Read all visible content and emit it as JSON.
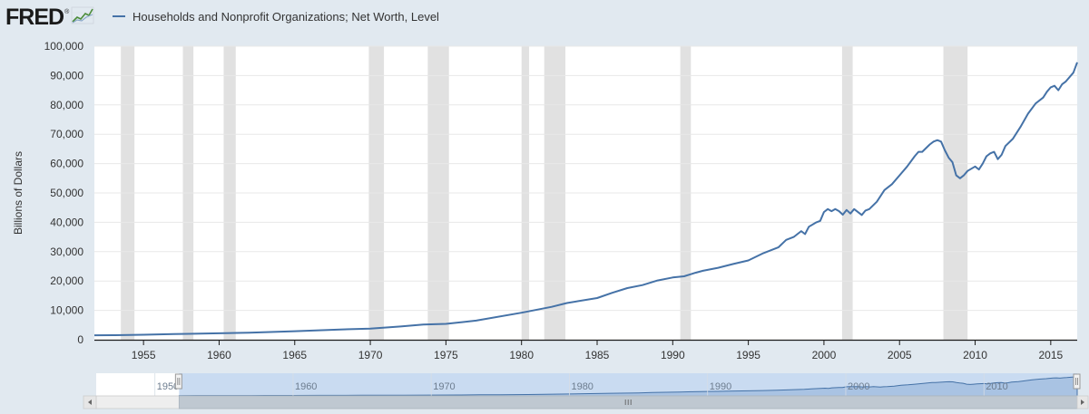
{
  "header": {
    "logo_text": "FRED",
    "logo_mark": "®",
    "logo_icon": "line-graph-icon"
  },
  "colors": {
    "background": "#e1e9f0",
    "plot_background": "#ffffff",
    "series": "#4572a7",
    "recession": "#e1e1e1",
    "navigator_fill": "#a9c3e3",
    "navigator_selection": "#c9dbf1"
  },
  "chart_data": {
    "type": "line",
    "title": "",
    "xlabel": "",
    "ylabel": "Billions of Dollars",
    "xlim": [
      1951.75,
      2016.75
    ],
    "ylim": [
      0,
      100000
    ],
    "y_ticks": [
      0,
      10000,
      20000,
      30000,
      40000,
      50000,
      60000,
      70000,
      80000,
      90000,
      100000
    ],
    "y_tick_labels": [
      "0",
      "10,000",
      "20,000",
      "30,000",
      "40,000",
      "50,000",
      "60,000",
      "70,000",
      "80,000",
      "90,000",
      "100,000"
    ],
    "x_ticks": [
      1955,
      1960,
      1965,
      1970,
      1975,
      1980,
      1985,
      1990,
      1995,
      2000,
      2005,
      2010,
      2015
    ],
    "x_tick_labels": [
      "1955",
      "1960",
      "1965",
      "1970",
      "1975",
      "1980",
      "1985",
      "1990",
      "1995",
      "2000",
      "2005",
      "2010",
      "2015"
    ],
    "grid": "horizontal",
    "legend_position": "top-left",
    "recessions": [
      [
        1953.5,
        1954.4
      ],
      [
        1957.6,
        1958.3
      ],
      [
        1960.3,
        1961.1
      ],
      [
        1969.9,
        1970.9
      ],
      [
        1973.8,
        1975.2
      ],
      [
        1980.0,
        1980.5
      ],
      [
        1981.5,
        1982.9
      ],
      [
        1990.5,
        1991.2
      ],
      [
        2001.2,
        2001.9
      ],
      [
        2007.9,
        2009.5
      ]
    ],
    "series": [
      {
        "name": "Households and Nonprofit Organizations; Net Worth, Level",
        "x": [
          1951.75,
          1953,
          1955,
          1957,
          1958,
          1960,
          1962,
          1965,
          1968,
          1970,
          1972,
          1973.5,
          1975,
          1977,
          1980,
          1982,
          1983,
          1985,
          1986,
          1987,
          1988,
          1989,
          1990,
          1990.75,
          1991.5,
          1992,
          1993,
          1994,
          1995,
          1996,
          1997,
          1997.5,
          1998,
          1998.5,
          1998.75,
          1999,
          1999.5,
          1999.75,
          2000,
          2000.25,
          2000.5,
          2000.75,
          2001,
          2001.25,
          2001.5,
          2001.75,
          2002,
          2002.5,
          2002.75,
          2003,
          2003.5,
          2004,
          2004.5,
          2005,
          2005.5,
          2006,
          2006.25,
          2006.5,
          2007,
          2007.25,
          2007.5,
          2007.75,
          2008,
          2008.25,
          2008.5,
          2008.75,
          2009,
          2009.25,
          2009.5,
          2010,
          2010.25,
          2010.5,
          2010.75,
          2011,
          2011.25,
          2011.5,
          2011.75,
          2012,
          2012.5,
          2013,
          2013.5,
          2014,
          2014.5,
          2014.75,
          2015,
          2015.25,
          2015.5,
          2015.75,
          2016,
          2016.5,
          2016.75
        ],
        "values": [
          1500,
          1550,
          1700,
          1900,
          2000,
          2200,
          2400,
          2900,
          3500,
          3800,
          4500,
          5200,
          5400,
          6500,
          9200,
          11200,
          12500,
          14200,
          16000,
          17600,
          18600,
          20200,
          21200,
          21600,
          22800,
          23500,
          24500,
          25800,
          27000,
          29500,
          31500,
          34000,
          35000,
          37000,
          36000,
          38500,
          40000,
          40500,
          43500,
          44500,
          43800,
          44500,
          43800,
          42600,
          44200,
          43000,
          44500,
          42500,
          44000,
          44500,
          47000,
          51000,
          53000,
          56000,
          59000,
          62500,
          64000,
          64000,
          66500,
          67500,
          68000,
          67500,
          64500,
          62000,
          60500,
          56000,
          55000,
          56000,
          57500,
          59000,
          58000,
          60000,
          62500,
          63500,
          64000,
          61500,
          63000,
          66000,
          68500,
          72500,
          77000,
          80500,
          82500,
          84500,
          86000,
          86500,
          85000,
          87000,
          88000,
          91000,
          94500
        ]
      }
    ],
    "navigator": {
      "x_tick_labels": [
        "1950",
        "1960",
        "1970",
        "1980",
        "1990",
        "2000",
        "2010"
      ],
      "x_ticks": [
        1950,
        1960,
        1970,
        1980,
        1990,
        2000,
        2010
      ],
      "full_range": [
        1945.75,
        2016.75
      ],
      "selected_range": [
        1951.75,
        2016.75
      ]
    }
  }
}
